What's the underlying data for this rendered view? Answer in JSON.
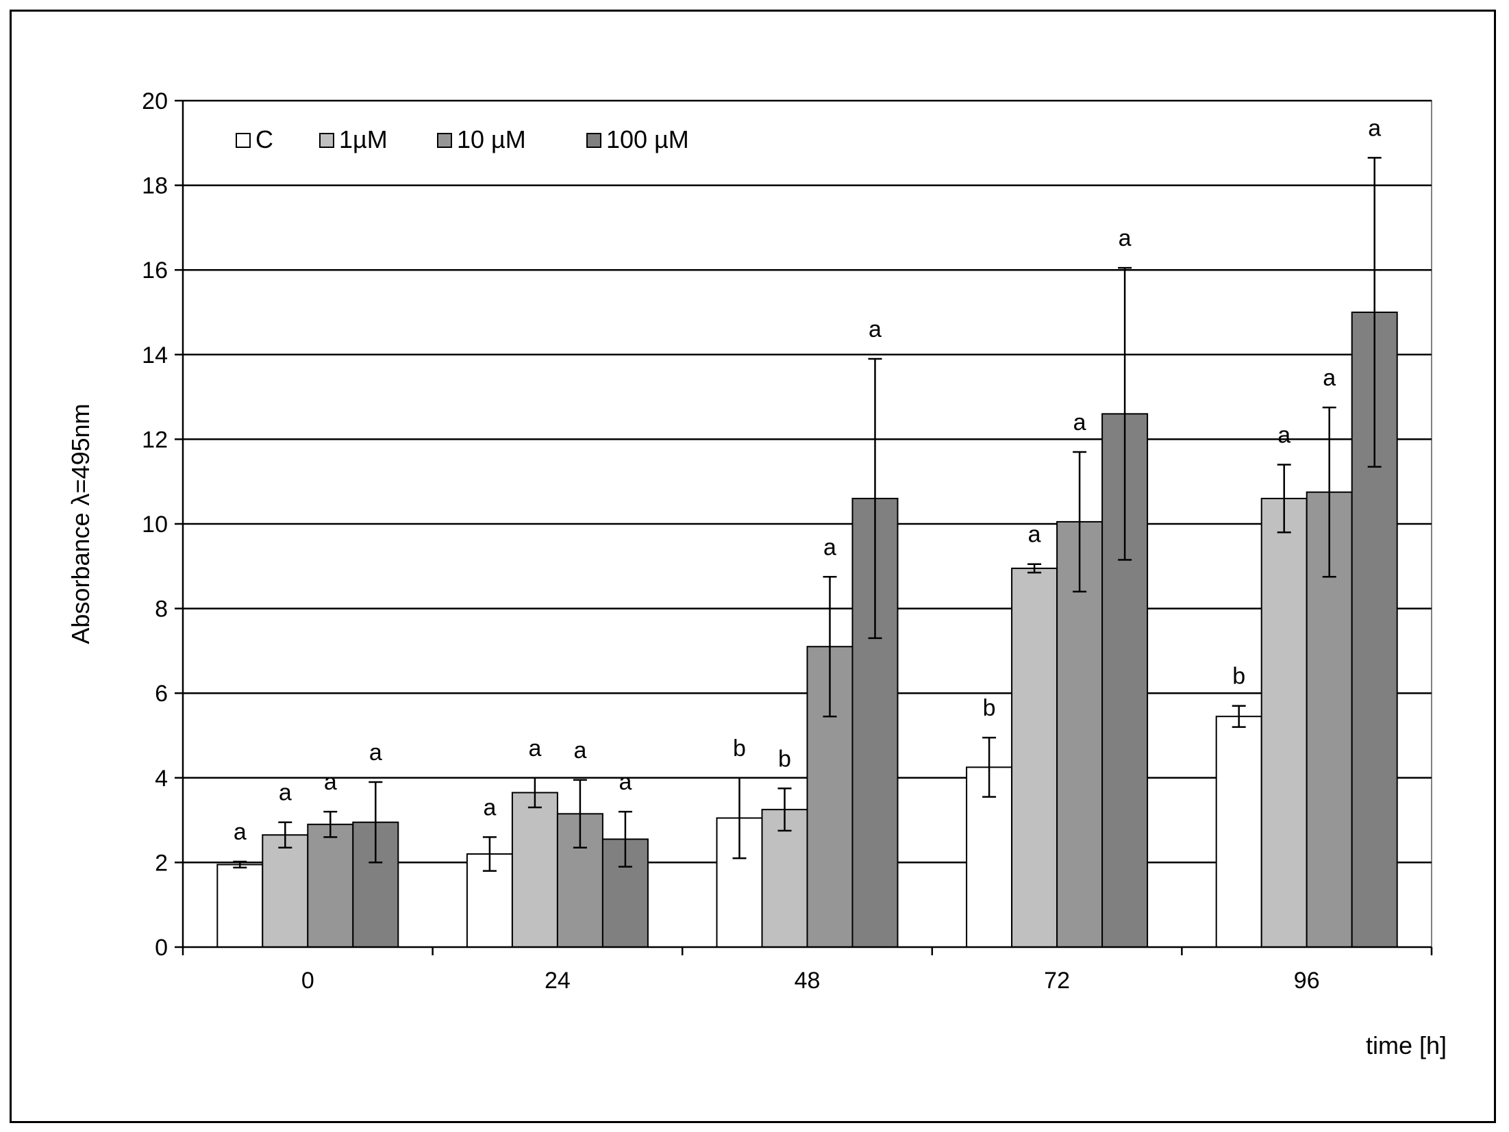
{
  "chart_data": {
    "type": "bar",
    "categories": [
      "0",
      "24",
      "48",
      "72",
      "96"
    ],
    "xlabel": "time [h]",
    "ylabel": "Absorbance λ=495nm",
    "ylim": [
      0,
      20
    ],
    "yticks": [
      "0",
      "2",
      "4",
      "6",
      "8",
      "10",
      "12",
      "14",
      "16",
      "18",
      "20"
    ],
    "grid": true,
    "legend_position": "top-left",
    "series": [
      {
        "name": "C",
        "color": "#ffffff",
        "values": [
          1.95,
          2.2,
          3.05,
          4.25,
          5.45
        ],
        "errors": [
          0.07,
          0.4,
          0.95,
          0.7,
          0.25
        ],
        "letters": [
          "a",
          "a",
          "b",
          "b",
          "b"
        ]
      },
      {
        "name": "1µM",
        "color": "#c0c0c0",
        "values": [
          2.65,
          3.65,
          3.25,
          8.95,
          10.6
        ],
        "errors": [
          0.3,
          0.35,
          0.5,
          0.1,
          0.8
        ],
        "letters": [
          "a",
          "a",
          "b",
          "a",
          "a"
        ]
      },
      {
        "name": "10 µM",
        "color": "#969696",
        "values": [
          2.9,
          3.15,
          7.1,
          10.05,
          10.75
        ],
        "errors": [
          0.3,
          0.8,
          1.65,
          1.65,
          2.0
        ],
        "letters": [
          "a",
          "a",
          "a",
          "a",
          "a"
        ]
      },
      {
        "name": "100 µM",
        "color": "#808080",
        "values": [
          2.95,
          2.55,
          10.6,
          12.6,
          15.0
        ],
        "errors": [
          0.95,
          0.65,
          3.3,
          3.45,
          3.65
        ],
        "letters": [
          "a",
          "a",
          "a",
          "a",
          "a"
        ]
      }
    ]
  }
}
